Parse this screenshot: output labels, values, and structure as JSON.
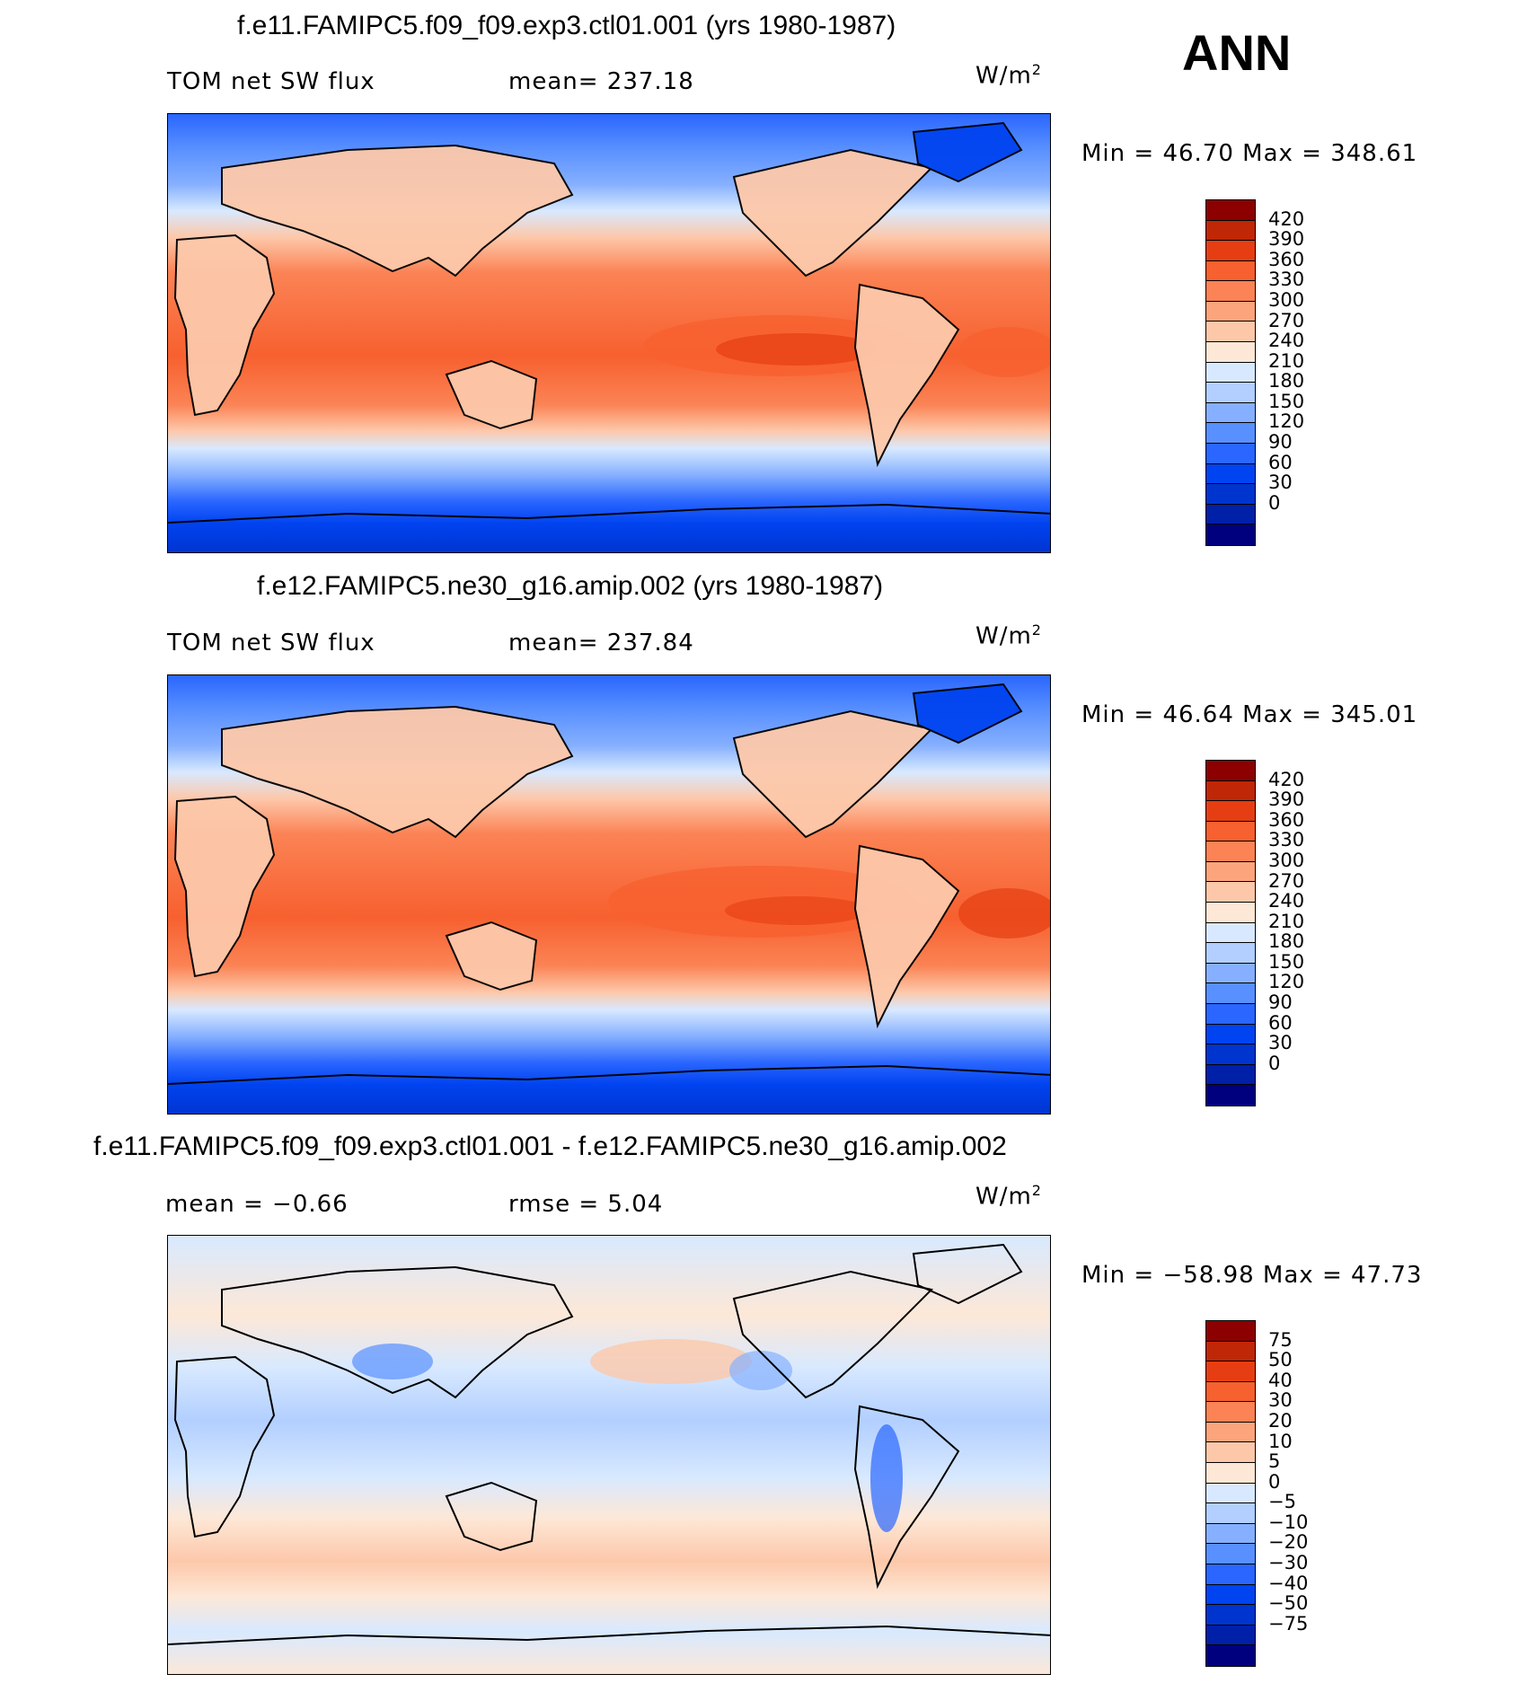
{
  "season": "ANN",
  "units_prefix": "W/m",
  "units_power": "2",
  "panels": [
    {
      "title": "f.e11.FAMIPC5.f09_f09.exp3.ctl01.001 (yrs 1980-1987)",
      "left_label": "TOM net SW flux",
      "center_label": "mean= 237.18",
      "minmax": "Min =   46.70 Max = 348.61",
      "palette": [
        "#00007f",
        "#0020a8",
        "#0034cf",
        "#0043f0",
        "#2a66ff",
        "#5990ff",
        "#86b0ff",
        "#b2cfff",
        "#d8e9ff",
        "#fde8d7",
        "#fdc8aa",
        "#fca57c",
        "#fb8355",
        "#f7602f",
        "#e63e12",
        "#bf2706",
        "#8c0000"
      ],
      "ticks": [
        "420",
        "390",
        "360",
        "330",
        "300",
        "270",
        "240",
        "210",
        "180",
        "150",
        "120",
        "90",
        "60",
        "30",
        "0"
      ]
    },
    {
      "title": "f.e12.FAMIPC5.ne30_g16.amip.002 (yrs 1980-1987)",
      "left_label": "TOM net SW flux",
      "center_label": "mean= 237.84",
      "minmax": "Min =   46.64 Max = 345.01",
      "palette": [
        "#00007f",
        "#0020a8",
        "#0034cf",
        "#0043f0",
        "#2a66ff",
        "#5990ff",
        "#86b0ff",
        "#b2cfff",
        "#d8e9ff",
        "#fde8d7",
        "#fdc8aa",
        "#fca57c",
        "#fb8355",
        "#f7602f",
        "#e63e12",
        "#bf2706",
        "#8c0000"
      ],
      "ticks": [
        "420",
        "390",
        "360",
        "330",
        "300",
        "270",
        "240",
        "210",
        "180",
        "150",
        "120",
        "90",
        "60",
        "30",
        "0"
      ]
    },
    {
      "title": "f.e11.FAMIPC5.f09_f09.exp3.ctl01.001 - f.e12.FAMIPC5.ne30_g16.amip.002",
      "left_label": "mean =   −0.66",
      "center_label": "rmse =     5.04",
      "minmax": "Min = −58.98 Max =   47.73",
      "palette": [
        "#00007f",
        "#0020a8",
        "#0034cf",
        "#0043f0",
        "#2a66ff",
        "#5990ff",
        "#86b0ff",
        "#b2cfff",
        "#d8e9ff",
        "#fde8d7",
        "#fdc8aa",
        "#fca57c",
        "#fb8355",
        "#f7602f",
        "#e63e12",
        "#bf2706",
        "#8c0000"
      ],
      "ticks": [
        "75",
        "50",
        "40",
        "30",
        "20",
        "10",
        "5",
        "0",
        "−5",
        "−10",
        "−20",
        "−30",
        "−40",
        "−50",
        "−75"
      ]
    }
  ]
}
